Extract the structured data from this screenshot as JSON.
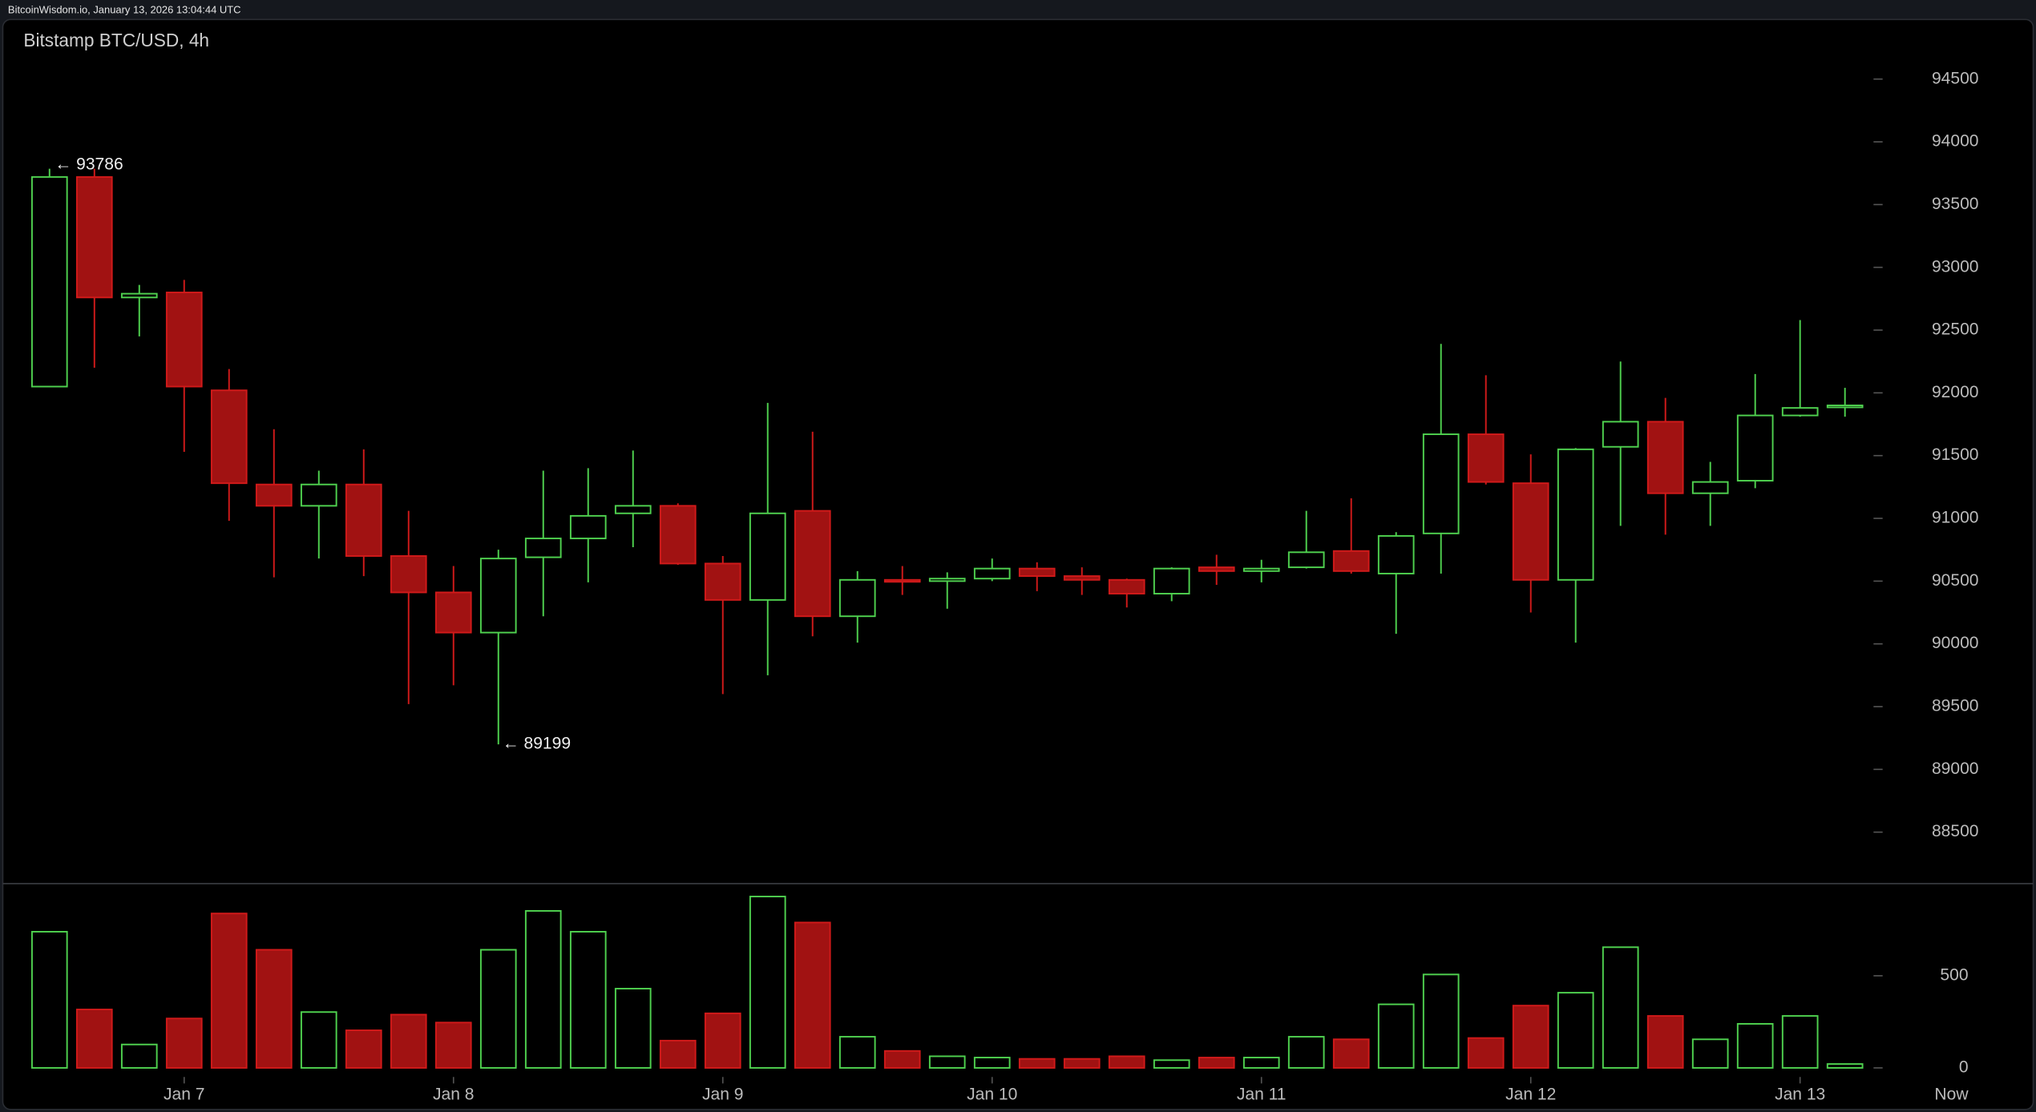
{
  "header": "BitcoinWisdom.io, January 13, 2026 13:04:44 UTC",
  "chart_data": {
    "type": "candlestick",
    "title": "Bitstamp BTC/USD, 4h",
    "categories": [
      null,
      null,
      null,
      "Jan 7",
      null,
      null,
      null,
      null,
      null,
      "Jan 8",
      null,
      null,
      null,
      null,
      null,
      "Jan 9",
      null,
      null,
      null,
      null,
      null,
      "Jan 10",
      null,
      null,
      null,
      null,
      null,
      "Jan 11",
      null,
      null,
      null,
      null,
      null,
      "Jan 12",
      null,
      null,
      null,
      null,
      null,
      "Jan 13",
      null
    ],
    "x_end_label": "Now",
    "open": [
      92050,
      93720,
      92760,
      92800,
      92020,
      91270,
      91100,
      91270,
      90700,
      90410,
      90090,
      90690,
      90840,
      91040,
      91100,
      90640,
      90350,
      91060,
      90220,
      90510,
      90500,
      90520,
      90600,
      90540,
      90510,
      90400,
      90610,
      90580,
      90610,
      90740,
      90560,
      90880,
      91670,
      91280,
      90510,
      91570,
      91770,
      91200,
      91300,
      91820,
      91890
    ],
    "high": [
      93786,
      93786,
      92860,
      92900,
      92190,
      91710,
      91380,
      91550,
      91060,
      90620,
      90750,
      91380,
      91400,
      91540,
      91120,
      90700,
      91920,
      91690,
      90580,
      90620,
      90570,
      90680,
      90650,
      90610,
      90520,
      90610,
      90710,
      90670,
      91060,
      91160,
      90890,
      92390,
      92140,
      91510,
      91560,
      92250,
      91960,
      91450,
      92150,
      92580,
      92040
    ],
    "low": [
      92050,
      92200,
      92450,
      91530,
      90980,
      90530,
      90680,
      90540,
      89520,
      89670,
      89199,
      90220,
      90490,
      90770,
      90630,
      89600,
      89750,
      90060,
      90010,
      90390,
      90280,
      90500,
      90420,
      90390,
      90290,
      90340,
      90470,
      90490,
      90600,
      90560,
      90080,
      90560,
      91270,
      90250,
      90010,
      90940,
      90870,
      90940,
      91240,
      91810,
      91810
    ],
    "close": [
      93720,
      92760,
      92790,
      92050,
      91280,
      91100,
      91270,
      90700,
      90410,
      90090,
      90680,
      90840,
      91020,
      91100,
      90640,
      90350,
      91040,
      90220,
      90510,
      90500,
      90520,
      90600,
      90540,
      90510,
      90400,
      90600,
      90580,
      90600,
      90730,
      90580,
      90860,
      91670,
      91290,
      90510,
      91550,
      91770,
      91200,
      91290,
      91820,
      91880,
      91900
    ],
    "volume": [
      739,
      317,
      127,
      268,
      838,
      641,
      303,
      204,
      289,
      246,
      641,
      852,
      739,
      430,
      148,
      296,
      930,
      789,
      169,
      92,
      63,
      56,
      49,
      49,
      63,
      42,
      56,
      56,
      169,
      155,
      345,
      507,
      162,
      338,
      408,
      655,
      282,
      155,
      239,
      282,
      21
    ],
    "up_color": "#4fd14f",
    "down_color": "#a11212",
    "down_edge": "#d11a1a",
    "ylim": [
      88100,
      94975
    ],
    "yticks": [
      88500,
      89000,
      89500,
      90000,
      90500,
      91000,
      91500,
      92000,
      92500,
      93000,
      93500,
      94000,
      94500
    ],
    "volume_ylim": [
      0,
      1000
    ],
    "volume_yticks": [
      0,
      500
    ],
    "high_label": "← 93786",
    "low_label": "← 89199"
  }
}
